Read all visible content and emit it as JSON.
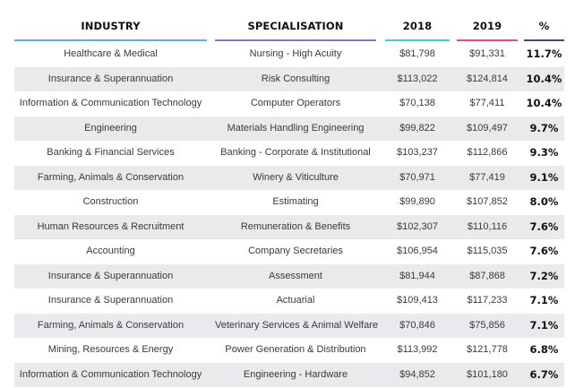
{
  "chart_data": {
    "type": "table",
    "columns": [
      "INDUSTRY",
      "SPECIALISATION",
      "2018",
      "2019",
      "%"
    ],
    "column_colors": [
      "#4db8e0",
      "#7b7bc8",
      "#4cc9c9",
      "#e84a8e",
      "#4a4a7a"
    ],
    "rows": [
      {
        "industry": "Healthcare & Medical",
        "specialisation": "Nursing - High Acuity",
        "y2018": "$81,798",
        "y2019": "$91,331",
        "pct": "11.7%"
      },
      {
        "industry": "Insurance & Superannuation",
        "specialisation": "Risk Consulting",
        "y2018": "$113,022",
        "y2019": "$124,814",
        "pct": "10.4%"
      },
      {
        "industry": "Information & Communication Technology",
        "specialisation": "Computer Operators",
        "y2018": "$70,138",
        "y2019": "$77,411",
        "pct": "10.4%"
      },
      {
        "industry": "Engineering",
        "specialisation": "Materials Handling Engineering",
        "y2018": "$99,822",
        "y2019": "$109,497",
        "pct": "9.7%"
      },
      {
        "industry": "Banking & Financial Services",
        "specialisation": "Banking - Corporate & Institutional",
        "y2018": "$103,237",
        "y2019": "$112,866",
        "pct": "9.3%"
      },
      {
        "industry": "Farming, Animals & Conservation",
        "specialisation": "Winery & Viticulture",
        "y2018": "$70,971",
        "y2019": "$77,419",
        "pct": "9.1%"
      },
      {
        "industry": "Construction",
        "specialisation": "Estimating",
        "y2018": "$99,890",
        "y2019": "$107,852",
        "pct": "8.0%"
      },
      {
        "industry": "Human Resources & Recruitment",
        "specialisation": "Remuneration & Benefits",
        "y2018": "$102,307",
        "y2019": "$110,116",
        "pct": "7.6%"
      },
      {
        "industry": "Accounting",
        "specialisation": "Company Secretaries",
        "y2018": "$106,954",
        "y2019": "$115,035",
        "pct": "7.6%"
      },
      {
        "industry": "Insurance & Superannuation",
        "specialisation": "Assessment",
        "y2018": "$81,944",
        "y2019": "$87,868",
        "pct": "7.2%"
      },
      {
        "industry": "Insurance & Superannuation",
        "specialisation": "Actuarial",
        "y2018": "$109,413",
        "y2019": "$117,233",
        "pct": "7.1%"
      },
      {
        "industry": "Farming, Animals & Conservation",
        "specialisation": "Veterinary Services & Animal Welfare",
        "y2018": "$70,846",
        "y2019": "$75,856",
        "pct": "7.1%"
      },
      {
        "industry": "Mining, Resources & Energy",
        "specialisation": "Power Generation & Distribution",
        "y2018": "$113,992",
        "y2019": "$121,778",
        "pct": "6.8%"
      },
      {
        "industry": "Information & Communication Technology",
        "specialisation": "Engineering - Hardware",
        "y2018": "$94,852",
        "y2019": "$101,180",
        "pct": "6.7%"
      }
    ]
  }
}
